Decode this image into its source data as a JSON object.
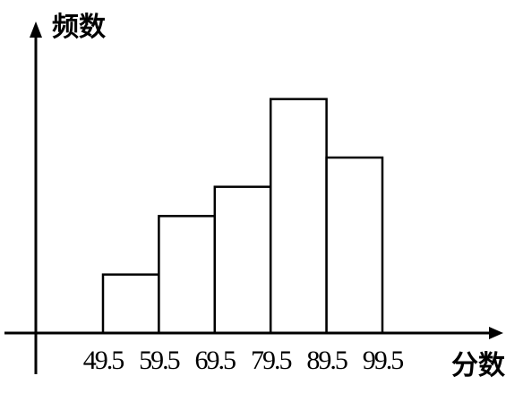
{
  "chart_data": {
    "type": "bar",
    "histogram": true,
    "ylabel": "频数",
    "xlabel": "分数",
    "bin_edges": [
      49.5,
      59.5,
      69.5,
      79.5,
      89.5,
      99.5
    ],
    "bin_edge_labels": [
      "49.5",
      "59.5",
      "69.5",
      "79.5",
      "89.5",
      "99.5"
    ],
    "values": [
      2,
      4,
      5,
      8,
      6
    ],
    "ylim": [
      0,
      9
    ],
    "xlim": [
      39.5,
      99.5
    ],
    "grid": false,
    "legend": "none",
    "y_ticks_shown": false
  }
}
